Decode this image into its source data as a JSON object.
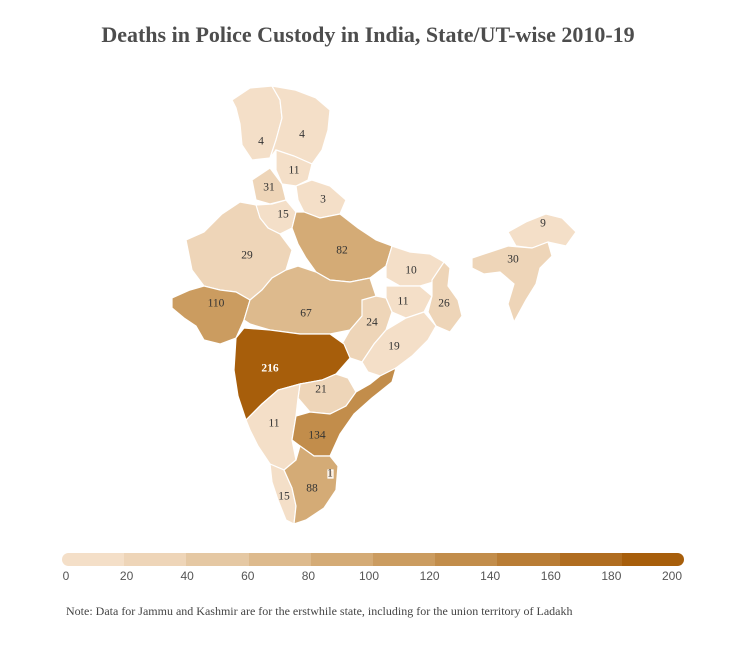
{
  "title": "Deaths in Police Custody in India, State/UT-wise 2010-19",
  "note": "Note: Data for Jammu and Kashmir are for the erstwhile state, including for the union territory of Ladakh",
  "legend": {
    "ticks": [
      "0",
      "20",
      "40",
      "60",
      "80",
      "100",
      "120",
      "140",
      "160",
      "180",
      "200"
    ],
    "colors": [
      "#f4dfc8",
      "#eed5b8",
      "#e5c8a3",
      "#ddba8d",
      "#d4ab76",
      "#cb9c60",
      "#c28d4b",
      "#b97d35",
      "#b06d20",
      "#a75e0b"
    ]
  },
  "colors": {
    "border": "#ffffff",
    "text_dark": "#333333",
    "text_light": "#ffffff"
  },
  "chart_data": {
    "type": "choropleth",
    "title": "Deaths in Police Custody in India, State/UT-wise 2010-19",
    "range": [
      0,
      200
    ],
    "regions": [
      {
        "name": "Jammu and Kashmir (west)",
        "value": 4
      },
      {
        "name": "Jammu and Kashmir (east)",
        "value": 4
      },
      {
        "name": "Himachal Pradesh",
        "value": 11
      },
      {
        "name": "Punjab",
        "value": 31
      },
      {
        "name": "Haryana",
        "value": 15
      },
      {
        "name": "Uttarakhand",
        "value": 3
      },
      {
        "name": "Rajasthan",
        "value": 29
      },
      {
        "name": "Uttar Pradesh",
        "value": 82
      },
      {
        "name": "Bihar",
        "value": 10
      },
      {
        "name": "Gujarat",
        "value": 110
      },
      {
        "name": "Madhya Pradesh",
        "value": 67
      },
      {
        "name": "Jharkhand",
        "value": 11
      },
      {
        "name": "West Bengal",
        "value": 26
      },
      {
        "name": "Chhattisgarh",
        "value": 24
      },
      {
        "name": "Odisha",
        "value": 19
      },
      {
        "name": "Maharashtra",
        "value": 216
      },
      {
        "name": "Telangana",
        "value": 21
      },
      {
        "name": "Karnataka",
        "value": 11
      },
      {
        "name": "Andhra Pradesh",
        "value": 134
      },
      {
        "name": "Kerala",
        "value": 15
      },
      {
        "name": "Tamil Nadu",
        "value": 88
      },
      {
        "name": "Puducherry",
        "value": 1
      },
      {
        "name": "Arunachal Pradesh",
        "value": 9
      },
      {
        "name": "Assam",
        "value": 30
      }
    ]
  }
}
